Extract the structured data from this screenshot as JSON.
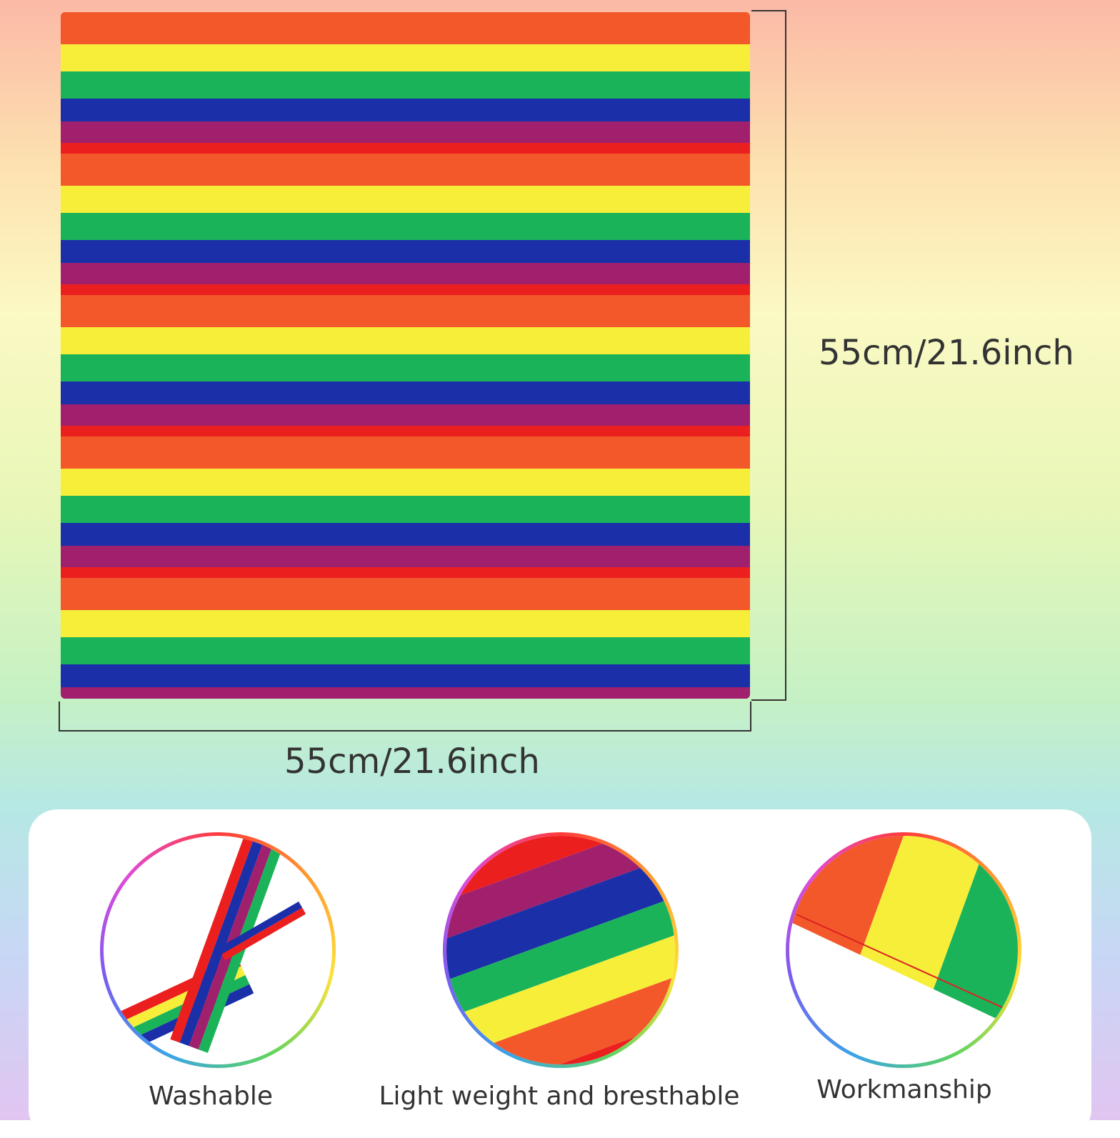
{
  "dimensions": {
    "height": "55cm/21.6inch",
    "width": "55cm/21.6inch"
  },
  "features": [
    {
      "label": "Washable"
    },
    {
      "label": "Light weight and bresthable"
    },
    {
      "label": "Workmanship"
    }
  ]
}
